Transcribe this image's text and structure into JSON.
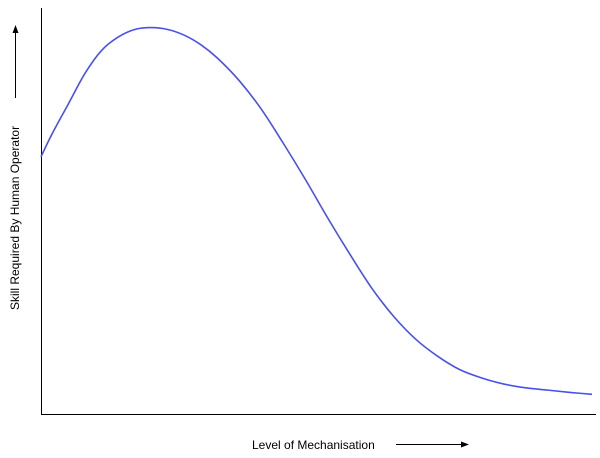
{
  "chart_data": {
    "type": "line",
    "title": "",
    "xlabel": "Level of Mechanisation",
    "ylabel": "Skill Required By Human Operator",
    "xlim": [
      0,
      1
    ],
    "ylim": [
      0,
      1
    ],
    "grid": false,
    "legend": "none",
    "series": [
      {
        "color": "#4a4ff0",
        "x": [
          0.0,
          0.02,
          0.05,
          0.08,
          0.11,
          0.14,
          0.17,
          0.2,
          0.23,
          0.26,
          0.29,
          0.32,
          0.36,
          0.4,
          0.44,
          0.48,
          0.52,
          0.56,
          0.6,
          0.64,
          0.68,
          0.72,
          0.76,
          0.8,
          0.84,
          0.88,
          0.92,
          0.96,
          1.0
        ],
        "y": [
          0.64,
          0.7,
          0.78,
          0.86,
          0.92,
          0.955,
          0.975,
          0.98,
          0.975,
          0.96,
          0.935,
          0.9,
          0.84,
          0.765,
          0.675,
          0.58,
          0.48,
          0.385,
          0.295,
          0.22,
          0.16,
          0.115,
          0.08,
          0.058,
          0.042,
          0.032,
          0.026,
          0.02,
          0.015
        ]
      }
    ]
  }
}
